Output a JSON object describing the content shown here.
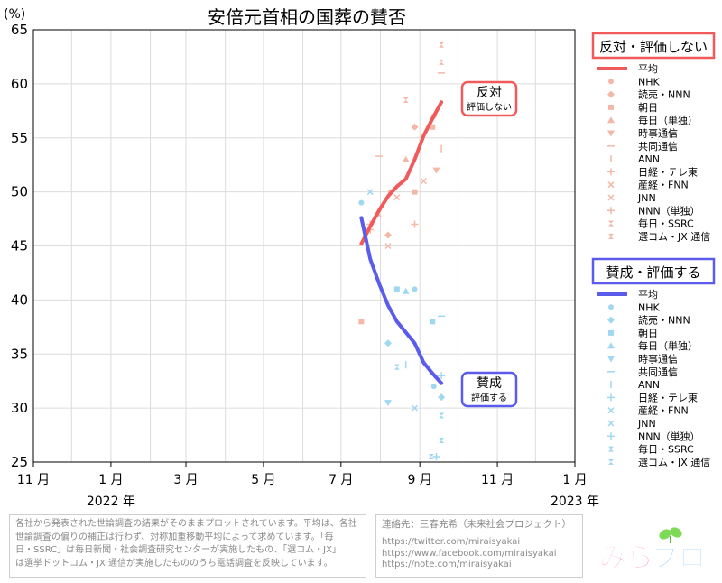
{
  "chart_data": {
    "type": "scatter",
    "title": "安倍元首相の国葬の賛否",
    "ylabel": "(%)",
    "ylim": [
      25,
      65
    ],
    "yticks": [
      "25",
      "30",
      "35",
      "40",
      "45",
      "50",
      "55",
      "60",
      "65"
    ],
    "xlim": [
      "2021-11-01",
      "2023-01-01"
    ],
    "xticks": [
      {
        "date": "2021-11-01",
        "label": "11 月"
      },
      {
        "date": "2022-01-01",
        "label": "1 月"
      },
      {
        "date": "2022-03-01",
        "label": "3 月"
      },
      {
        "date": "2022-05-01",
        "label": "5 月"
      },
      {
        "date": "2022-07-01",
        "label": "7 月"
      },
      {
        "date": "2022-09-01",
        "label": "9 月"
      },
      {
        "date": "2022-11-01",
        "label": "11 月"
      },
      {
        "date": "2023-01-01",
        "label": "1 月"
      }
    ],
    "year_labels": [
      {
        "date": "2022-01-01",
        "label": "2022 年"
      },
      {
        "date": "2023-01-01",
        "label": "2023 年"
      }
    ],
    "grid": true,
    "groups": [
      {
        "legend_title": "反対・評価しない",
        "annotation": {
          "main": "反対",
          "sub": "評価しない"
        },
        "color": "#f05a5a",
        "marker_color": "#f4b8a8",
        "trend_name": "平均",
        "trend": [
          [
            "2022-07-17",
            45.2
          ],
          [
            "2022-07-24",
            46.8
          ],
          [
            "2022-07-31",
            48.3
          ],
          [
            "2022-08-07",
            49.6
          ],
          [
            "2022-08-14",
            50.5
          ],
          [
            "2022-08-21",
            51.2
          ],
          [
            "2022-08-28",
            53.0
          ],
          [
            "2022-09-04",
            55.2
          ],
          [
            "2022-09-11",
            56.8
          ],
          [
            "2022-09-18",
            58.3
          ]
        ],
        "series": [
          {
            "name": "NHK",
            "points": [
              [
                "2022-08-09",
                50
              ],
              [
                "2022-09-12",
                57
              ]
            ]
          },
          {
            "name": "読売・NNN",
            "points": [
              [
                "2022-08-07",
                46
              ],
              [
                "2022-08-28",
                56
              ]
            ]
          },
          {
            "name": "朝日",
            "points": [
              [
                "2022-07-17",
                38
              ],
              [
                "2022-08-28",
                50
              ],
              [
                "2022-09-11",
                56
              ]
            ]
          },
          {
            "name": "毎日（単独）",
            "points": [
              [
                "2022-08-21",
                53
              ]
            ]
          },
          {
            "name": "時事通信",
            "points": [
              [
                "2022-09-14",
                52
              ]
            ]
          },
          {
            "name": "共同通信",
            "points": [
              [
                "2022-07-31",
                53.3
              ],
              [
                "2022-09-18",
                61
              ]
            ]
          },
          {
            "name": "ANN",
            "points": [
              [
                "2022-09-18",
                54
              ]
            ]
          },
          {
            "name": "日経・テレ東",
            "points": [
              [
                "2022-07-24",
                47
              ],
              [
                "2022-08-28",
                47
              ]
            ]
          },
          {
            "name": "産経・FNN",
            "points": [
              [
                "2022-08-14",
                49.5
              ]
            ]
          },
          {
            "name": "JNN",
            "points": [
              [
                "2022-08-07",
                45
              ],
              [
                "2022-09-04",
                51
              ]
            ]
          },
          {
            "name": "NNN（単独）",
            "points": [
              [
                "2022-07-24",
                46.5
              ]
            ]
          },
          {
            "name": "毎日・SSRC",
            "points": [
              [
                "2022-08-21",
                58.5
              ],
              [
                "2022-09-18",
                62
              ]
            ]
          },
          {
            "name": "選コム・JX 通信",
            "points": [
              [
                "2022-07-31",
                48
              ],
              [
                "2022-09-18",
                63.6
              ]
            ]
          }
        ]
      },
      {
        "legend_title": "賛成・評価する",
        "annotation": {
          "main": "賛成",
          "sub": "評価する"
        },
        "color": "#5b5bec",
        "marker_color": "#9fd8f0",
        "trend_name": "平均",
        "trend": [
          [
            "2022-07-17",
            47.6
          ],
          [
            "2022-07-24",
            43.8
          ],
          [
            "2022-07-31",
            41.5
          ],
          [
            "2022-08-07",
            39.5
          ],
          [
            "2022-08-14",
            38.0
          ],
          [
            "2022-08-21",
            37.0
          ],
          [
            "2022-08-28",
            36.0
          ],
          [
            "2022-09-04",
            34.2
          ],
          [
            "2022-09-11",
            33.2
          ],
          [
            "2022-09-18",
            32.3
          ]
        ],
        "series": [
          {
            "name": "NHK",
            "points": [
              [
                "2022-07-17",
                49
              ],
              [
                "2022-08-28",
                41
              ],
              [
                "2022-09-12",
                32
              ]
            ]
          },
          {
            "name": "読売・NNN",
            "points": [
              [
                "2022-08-07",
                36
              ],
              [
                "2022-09-18",
                31
              ]
            ]
          },
          {
            "name": "朝日",
            "points": [
              [
                "2022-08-14",
                41
              ],
              [
                "2022-09-11",
                38
              ]
            ]
          },
          {
            "name": "毎日（単独）",
            "points": [
              [
                "2022-08-21",
                40.8
              ]
            ]
          },
          {
            "name": "時事通信",
            "points": [
              [
                "2022-08-07",
                30.5
              ]
            ]
          },
          {
            "name": "共同通信",
            "points": [
              [
                "2022-09-18",
                38.5
              ]
            ]
          },
          {
            "name": "ANN",
            "points": [
              [
                "2022-08-21",
                34
              ]
            ]
          },
          {
            "name": "日経・テレ東",
            "points": [
              [
                "2022-09-18",
                33
              ]
            ]
          },
          {
            "name": "産経・FNN",
            "points": [
              [
                "2022-08-28",
                30
              ]
            ]
          },
          {
            "name": "JNN",
            "points": [
              [
                "2022-07-24",
                50
              ]
            ]
          },
          {
            "name": "NNN（単独）",
            "points": [
              [
                "2022-09-14",
                25.5
              ]
            ]
          },
          {
            "name": "毎日・SSRC",
            "points": [
              [
                "2022-09-18",
                29.3
              ],
              [
                "2022-09-18",
                27
              ]
            ]
          },
          {
            "name": "選コム・JX 通信",
            "points": [
              [
                "2022-08-14",
                33.8
              ],
              [
                "2022-09-10",
                25.5
              ]
            ]
          }
        ]
      }
    ]
  },
  "notes": {
    "lines": [
      "各社から発表された世論調査の結果がそのままプロットされています。平均は、各社",
      "世論調査の偏りの補正は行わず、対称加重移動平均によって求めています。「毎",
      "日・SSRC」は毎日新聞・社会調査研究センターが実施したもの、「選コム・JX」",
      "は選挙ドットコム・JX 通信が実施したもののうち電話調査を反映しています。"
    ]
  },
  "contact": {
    "lines": [
      "連絡先：三春充希（未来社会プロジェクト）",
      "https://twitter.com/miraisyakai",
      "https://www.facebook.com/miraisyakai",
      "https://note.com/miraisyakai"
    ]
  },
  "logo": {
    "text": "みらプロ"
  }
}
